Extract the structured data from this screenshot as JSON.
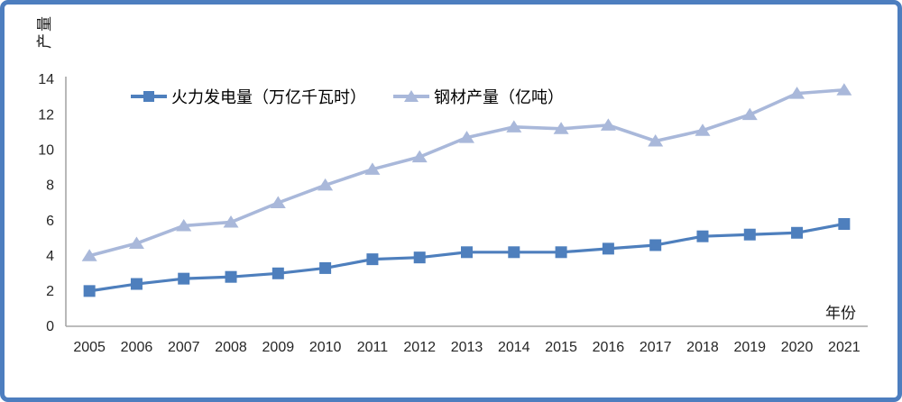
{
  "frame": {
    "border_color": "#4d7ebf",
    "background_color": "#ffffff"
  },
  "chart_data": {
    "type": "line",
    "title": "",
    "ylabel": "产量",
    "xlabel": "年份",
    "categories": [
      "2005",
      "2006",
      "2007",
      "2008",
      "2009",
      "2010",
      "2011",
      "2012",
      "2013",
      "2014",
      "2015",
      "2016",
      "2017",
      "2018",
      "2019",
      "2020",
      "2021"
    ],
    "y_ticks": [
      0,
      2,
      4,
      6,
      8,
      10,
      12,
      14
    ],
    "ylim": [
      0,
      14
    ],
    "grid": false,
    "legend_position": "top-inside",
    "axis_color": "#a6a6a6",
    "tick_label_color": "#262626",
    "series": [
      {
        "name": "火力发电量（万亿千瓦时）",
        "marker": "square",
        "color": "#4e7fbd",
        "values": [
          2.0,
          2.4,
          2.7,
          2.8,
          3.0,
          3.3,
          3.8,
          3.9,
          4.2,
          4.2,
          4.2,
          4.4,
          4.6,
          5.1,
          5.2,
          5.3,
          5.8
        ]
      },
      {
        "name": "钢材产量（亿吨）",
        "marker": "triangle",
        "color": "#a9b8da",
        "values": [
          4.0,
          4.7,
          5.7,
          5.9,
          7.0,
          8.0,
          8.9,
          9.6,
          10.7,
          11.3,
          11.2,
          11.4,
          10.5,
          11.1,
          12.0,
          13.2,
          13.4
        ]
      }
    ]
  }
}
